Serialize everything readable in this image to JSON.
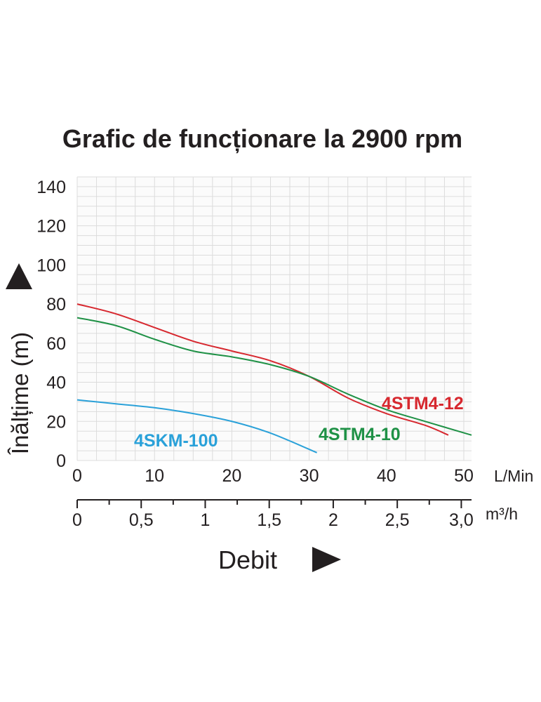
{
  "chart_data": {
    "type": "line",
    "title": "Grafic de funcționare la 2900 rpm",
    "ylabel": "Înălțime (m)",
    "xlabel": "Debit",
    "x_unit_primary": "L/Min",
    "x_unit_secondary": "m³/h",
    "xlim": [
      0,
      51
    ],
    "ylim": [
      0,
      145
    ],
    "grid": true,
    "y_ticks": [
      0,
      20,
      40,
      60,
      80,
      100,
      120,
      140
    ],
    "x_ticks": [
      0,
      10,
      20,
      30,
      40,
      50
    ],
    "x2_ticks": [
      "0",
      "0,5",
      "1",
      "1,5",
      "2",
      "2,5",
      "3,0"
    ],
    "x2_tick_values": [
      0,
      0.5,
      1,
      1.5,
      2,
      2.5,
      3.0
    ],
    "series": [
      {
        "name": "4STM4-12",
        "color": "#d7282f",
        "x": [
          0,
          5,
          10,
          15,
          20,
          25,
          30,
          35,
          40,
          45,
          48
        ],
        "y": [
          80,
          75,
          68,
          61,
          56,
          51,
          43,
          32,
          24,
          18,
          13
        ]
      },
      {
        "name": "4STM4-10",
        "color": "#1f9146",
        "x": [
          0,
          5,
          10,
          15,
          20,
          25,
          30,
          35,
          40,
          45,
          51
        ],
        "y": [
          73,
          69,
          62,
          56,
          53,
          49,
          43,
          34,
          26,
          20,
          13
        ]
      },
      {
        "name": "4SKM-100",
        "color": "#2aa1d9",
        "x": [
          0,
          5,
          10,
          15,
          20,
          25,
          31
        ],
        "y": [
          31,
          29,
          27,
          24,
          20,
          14,
          4
        ]
      }
    ]
  }
}
